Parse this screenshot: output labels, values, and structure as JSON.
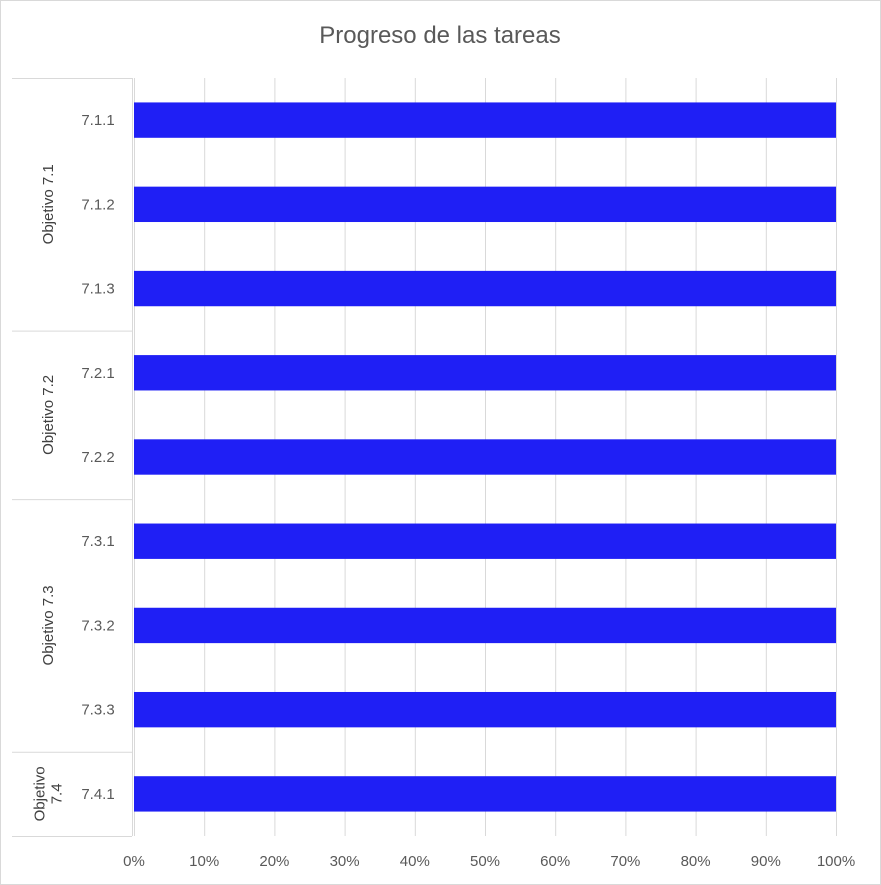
{
  "chart_data": {
    "type": "bar",
    "orientation": "horizontal",
    "title": "Progreso de las tareas",
    "groups": [
      {
        "name": "Objetivo 7.1",
        "label_lines": [
          "Objetivo 7.1"
        ],
        "categories": [
          "7.1.1",
          "7.1.2",
          "7.1.3"
        ]
      },
      {
        "name": "Objetivo 7.2",
        "label_lines": [
          "Objetivo 7.2"
        ],
        "categories": [
          "7.2.1",
          "7.2.2"
        ]
      },
      {
        "name": "Objetivo 7.3",
        "label_lines": [
          "Objetivo 7.3"
        ],
        "categories": [
          "7.3.1",
          "7.3.2",
          "7.3.3"
        ]
      },
      {
        "name": "Objetivo 7.4",
        "label_lines": [
          "Objetivo",
          "7.4"
        ],
        "categories": [
          "7.4.1"
        ]
      }
    ],
    "categories": [
      "7.1.1",
      "7.1.2",
      "7.1.3",
      "7.2.1",
      "7.2.2",
      "7.3.1",
      "7.3.2",
      "7.3.3",
      "7.4.1"
    ],
    "values": [
      1,
      1,
      1,
      1,
      1,
      1,
      1,
      1,
      1
    ],
    "xlim": [
      0,
      1
    ],
    "x_ticks": [
      "0%",
      "10%",
      "20%",
      "30%",
      "40%",
      "50%",
      "60%",
      "70%",
      "80%",
      "90%",
      "100%"
    ],
    "grid": true,
    "bar_color": "#1f1ff5"
  }
}
